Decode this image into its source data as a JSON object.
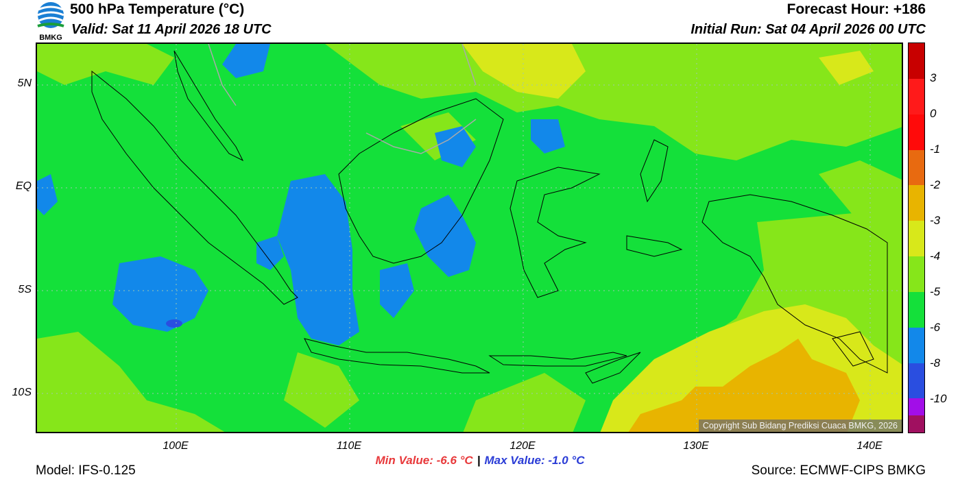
{
  "header": {
    "title": "500 hPa Temperature (°C)",
    "valid": "Valid: Sat 11 April 2026 18 UTC",
    "forecast_hour": "Forecast Hour: +186",
    "initial_run": "Initial Run: Sat 04 April 2026 00 UTC",
    "logo_text": "BMKG"
  },
  "axes": {
    "lat_labels": [
      "5N",
      "EQ",
      "5S",
      "10S"
    ],
    "lon_labels": [
      "100E",
      "110E",
      "120E",
      "130E",
      "140E"
    ]
  },
  "colorbar": {
    "labels": [
      "3",
      "0",
      "-1",
      "-2",
      "-3",
      "-4",
      "-5",
      "-6",
      "-8",
      "-10"
    ],
    "colors": [
      "#c80000",
      "#ff1a1a",
      "#ff0a0a",
      "#e86a10",
      "#e8b400",
      "#d8e81a",
      "#86e61a",
      "#14e03a",
      "#1288ea",
      "#2a4ee0",
      "#a20ee8",
      "#a01060"
    ]
  },
  "stats": {
    "min": "Min Value: -6.6 °C",
    "separator": "|",
    "max": "Max Value: -1.0 °C"
  },
  "footer": {
    "model": "Model: IFS-0.125",
    "source": "Source: ECMWF-CIPS BMKG",
    "copyright": "Copyright Sub Bidang Prediksi Cuaca BMKG, 2026"
  }
}
